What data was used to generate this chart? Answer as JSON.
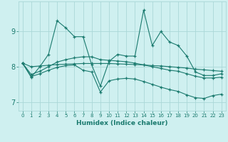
{
  "xlabel": "Humidex (Indice chaleur)",
  "background_color": "#cff0f0",
  "grid_color": "#aad8d8",
  "line_color": "#1a7a6e",
  "xlim": [
    -0.5,
    23.5
  ],
  "ylim": [
    6.75,
    9.85
  ],
  "yticks": [
    7,
    8,
    9
  ],
  "xticks": [
    0,
    1,
    2,
    3,
    4,
    5,
    6,
    7,
    8,
    9,
    10,
    11,
    12,
    13,
    14,
    15,
    16,
    17,
    18,
    19,
    20,
    21,
    22,
    23
  ],
  "series": [
    [
      8.1,
      7.7,
      8.0,
      8.35,
      9.3,
      9.1,
      8.85,
      8.85,
      8.05,
      7.45,
      8.15,
      8.35,
      8.3,
      8.3,
      9.6,
      8.6,
      9.0,
      8.7,
      8.6,
      8.3,
      7.85,
      7.75,
      7.75,
      7.8
    ],
    [
      8.1,
      8.0,
      8.02,
      8.04,
      8.06,
      8.07,
      8.08,
      8.09,
      8.09,
      8.09,
      8.09,
      8.08,
      8.07,
      8.06,
      8.05,
      8.03,
      8.02,
      8.0,
      7.98,
      7.96,
      7.93,
      7.91,
      7.89,
      7.87
    ],
    [
      8.1,
      7.78,
      7.87,
      8.0,
      8.13,
      8.2,
      8.25,
      8.28,
      8.28,
      8.2,
      8.18,
      8.16,
      8.14,
      8.1,
      8.05,
      8.0,
      7.95,
      7.9,
      7.87,
      7.8,
      7.73,
      7.68,
      7.68,
      7.7
    ],
    [
      8.1,
      7.72,
      7.8,
      7.9,
      7.98,
      8.03,
      8.05,
      7.9,
      7.85,
      7.28,
      7.6,
      7.65,
      7.67,
      7.65,
      7.58,
      7.5,
      7.42,
      7.35,
      7.3,
      7.2,
      7.12,
      7.1,
      7.18,
      7.22
    ]
  ]
}
